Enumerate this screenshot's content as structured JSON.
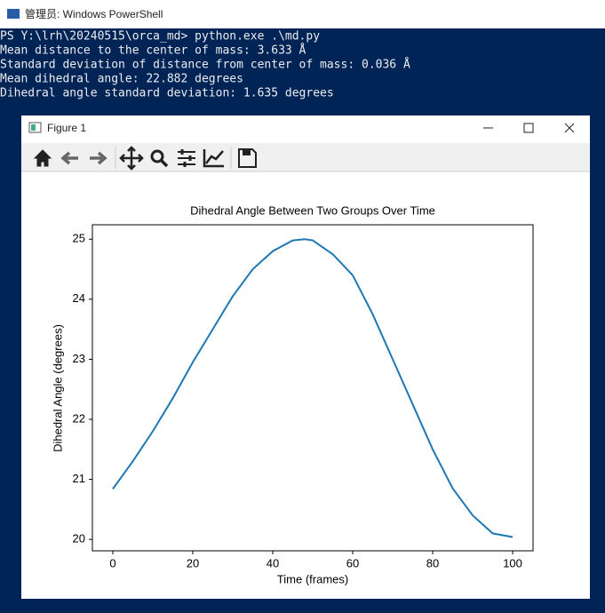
{
  "window": {
    "title": "管理员: Windows PowerShell"
  },
  "console": {
    "lines": [
      "PS Y:\\lrh\\20240515\\orca_md> python.exe .\\md.py",
      "Mean distance to the center of mass: 3.633 Å",
      "Standard deviation of distance from center of mass: 0.036 Å",
      "Mean dihedral angle: 22.882 degrees",
      "Dihedral angle standard deviation: 1.635 degrees"
    ]
  },
  "figure": {
    "title": "Figure 1"
  },
  "chart_data": {
    "type": "line",
    "title": "Dihedral Angle Between Two Groups Over Time",
    "x_label": "Time (frames)",
    "y_label": "Dihedral Angle (degrees)",
    "x": [
      0,
      5,
      10,
      15,
      20,
      25,
      30,
      35,
      40,
      45,
      48,
      50,
      55,
      60,
      65,
      70,
      75,
      80,
      85,
      90,
      95,
      100
    ],
    "series": [
      {
        "name": "Dihedral angle",
        "color": "#1f77b4",
        "values": [
          20.84,
          21.3,
          21.8,
          22.35,
          22.95,
          23.5,
          24.05,
          24.5,
          24.8,
          24.98,
          25.0,
          24.98,
          24.75,
          24.4,
          23.75,
          23.0,
          22.25,
          21.5,
          20.85,
          20.4,
          20.1,
          20.04
        ]
      }
    ],
    "xlim": [
      -5.1,
      105.1
    ],
    "ylim": [
      19.81,
      25.24
    ],
    "xticks": [
      0,
      20,
      40,
      60,
      80,
      100
    ],
    "yticks": [
      20,
      21,
      22,
      23,
      24,
      25
    ]
  }
}
